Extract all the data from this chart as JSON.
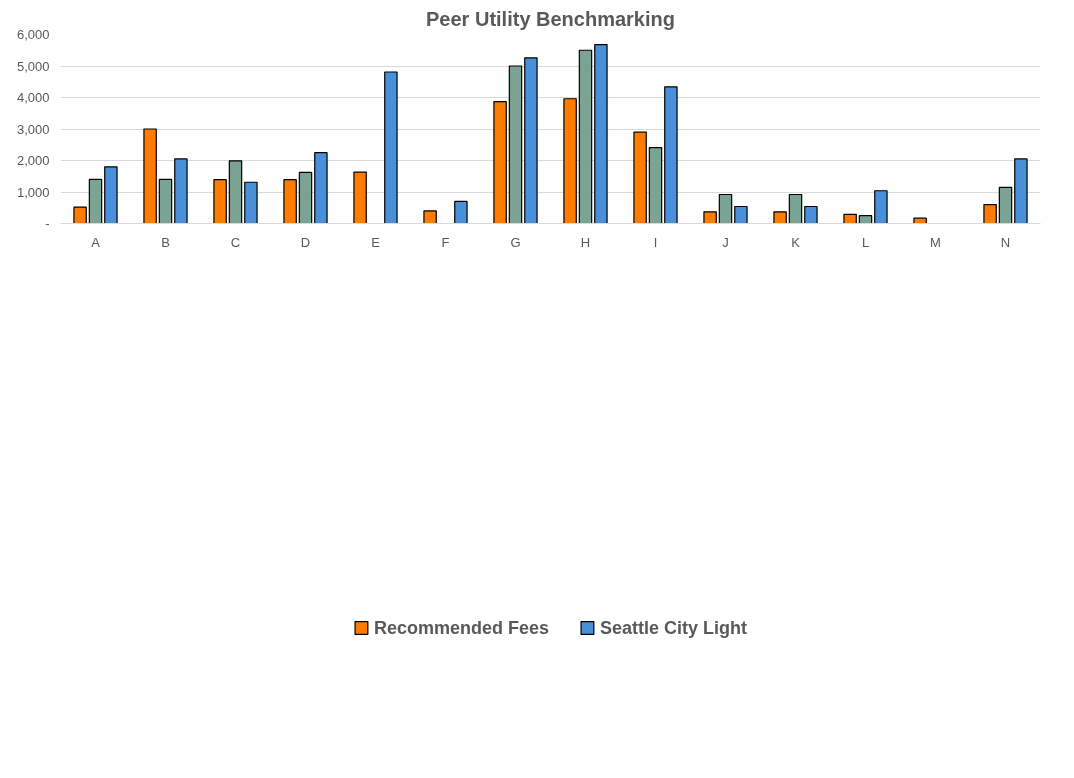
{
  "chart_data": {
    "type": "bar",
    "title": "Peer Utility Benchmarking",
    "categories": [
      "A",
      "B",
      "C",
      "D",
      "E",
      "F",
      "G",
      "H",
      "I",
      "J",
      "K",
      "L",
      "M",
      "N"
    ],
    "series": [
      {
        "name": "Recommended Fees",
        "color": "#ff7c00",
        "values": [
          520,
          3000,
          1390,
          1390,
          1630,
          400,
          3870,
          3960,
          2900,
          370,
          370,
          290,
          170,
          600
        ]
      },
      {
        "color": "#7ba393",
        "values": [
          1400,
          1400,
          1990,
          1620,
          null,
          null,
          5000,
          5500,
          2410,
          920,
          920,
          250,
          null,
          1150
        ]
      },
      {
        "name": "Seattle City Light",
        "color": "#4a90d9",
        "values": [
          1800,
          2050,
          1310,
          2250,
          4810,
          700,
          5260,
          5680,
          4340,
          540,
          540,
          1040,
          null,
          2050
        ]
      }
    ],
    "ylim": [
      0,
      6000
    ],
    "yticks": [
      {
        "value": 0,
        "label": "-"
      },
      {
        "value": 1000,
        "label": "1,000"
      },
      {
        "value": 2000,
        "label": "2,000"
      },
      {
        "value": 3000,
        "label": "3,000"
      },
      {
        "value": 4000,
        "label": "4,000"
      },
      {
        "value": 5000,
        "label": "5,000"
      },
      {
        "value": 6000,
        "label": "6,000"
      }
    ],
    "grid": "y",
    "legend": "bottom"
  }
}
